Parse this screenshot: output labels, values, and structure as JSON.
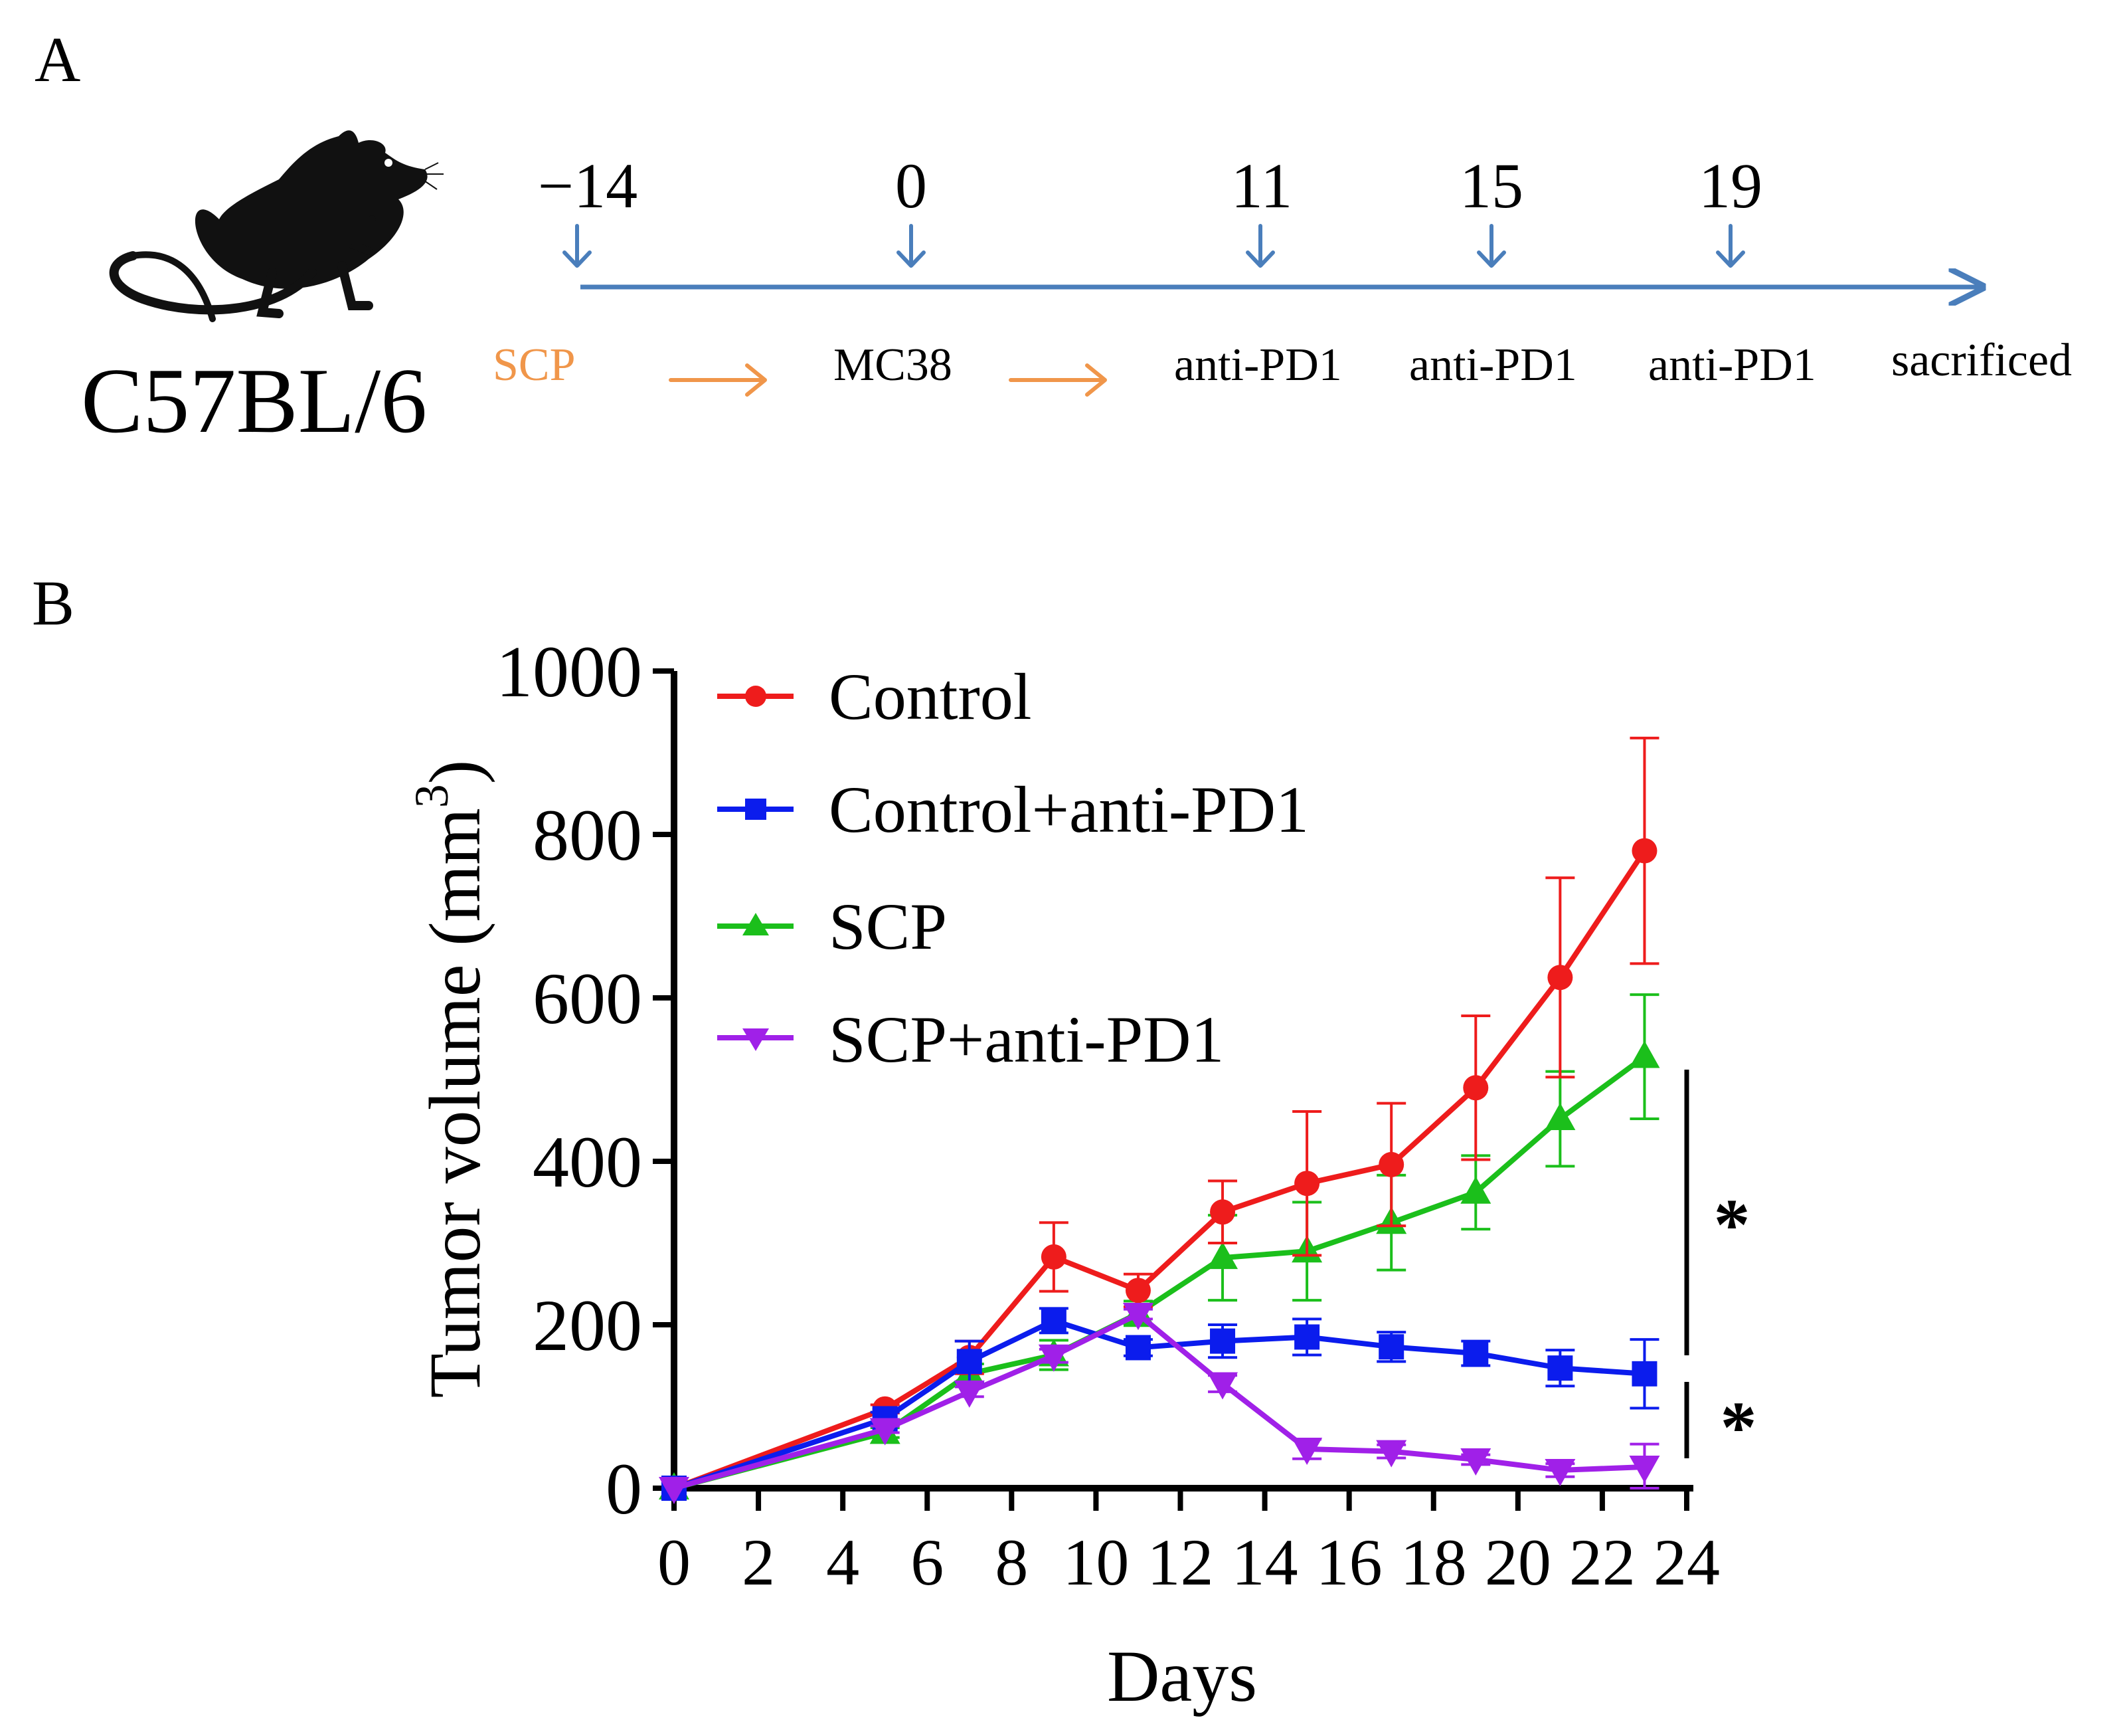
{
  "panel_a": {
    "label": "A",
    "strain": "C57BL/6",
    "mouse_icon": "mouse-silhouette-icon",
    "timeline": {
      "days": [
        "−14",
        "0",
        "11",
        "15",
        "19"
      ],
      "events": [
        "SCP",
        "MC38",
        "anti-PD1",
        "anti-PD1",
        "anti-PD1",
        "sacrificed"
      ],
      "axis_color": "#4a7ebb",
      "highlight_color": "#f0964a"
    }
  },
  "panel_b": {
    "label": "B",
    "significance": [
      "*",
      "*"
    ]
  },
  "chart_data": {
    "type": "line",
    "title": "",
    "xlabel": "Days",
    "ylabel": "Tumor volume (mm",
    "ylabel_sup": "3",
    "ylabel_close": ")",
    "xlim": [
      0,
      24
    ],
    "ylim": [
      0,
      1000
    ],
    "xticks": [
      "0",
      "2",
      "4",
      "6",
      "8",
      "10",
      "12",
      "14",
      "16",
      "18",
      "20",
      "22",
      "24"
    ],
    "yticks": [
      "0",
      "200",
      "400",
      "600",
      "800",
      "1000"
    ],
    "grid": false,
    "legend": "top-left",
    "series": [
      {
        "name": "Control",
        "color": "#ee1c1c",
        "marker": "circle",
        "x": [
          0,
          5,
          7,
          9,
          11,
          13,
          15,
          17,
          19,
          21,
          23
        ],
        "y": [
          0,
          97,
          160,
          283,
          242,
          338,
          373,
          396,
          490,
          625,
          780
        ],
        "err": [
          0,
          5,
          20,
          42,
          20,
          38,
          88,
          75,
          88,
          122,
          138
        ]
      },
      {
        "name": "Control+anti-PD1",
        "color": "#0b1ced",
        "marker": "square",
        "x": [
          0,
          5,
          7,
          9,
          11,
          13,
          15,
          17,
          19,
          21,
          23
        ],
        "y": [
          0,
          85,
          155,
          205,
          172,
          180,
          185,
          173,
          165,
          147,
          140
        ],
        "err": [
          0,
          8,
          25,
          15,
          10,
          20,
          22,
          18,
          15,
          22,
          42
        ]
      },
      {
        "name": "SCP",
        "color": "#1bbf1b",
        "marker": "triangle-up",
        "x": [
          0,
          5,
          7,
          9,
          11,
          13,
          15,
          17,
          19,
          21,
          23
        ],
        "y": [
          0,
          68,
          140,
          163,
          214,
          282,
          290,
          325,
          362,
          452,
          528
        ],
        "err": [
          0,
          6,
          12,
          18,
          15,
          52,
          60,
          58,
          45,
          58,
          76
        ]
      },
      {
        "name": "SCP+anti-PD1",
        "color": "#a020e8",
        "marker": "triangle-down",
        "x": [
          0,
          5,
          7,
          9,
          11,
          13,
          15,
          17,
          19,
          21,
          23
        ],
        "y": [
          0,
          72,
          118,
          162,
          213,
          128,
          48,
          45,
          35,
          22,
          26
        ],
        "err": [
          0,
          4,
          6,
          8,
          6,
          10,
          12,
          8,
          6,
          8,
          28
        ]
      }
    ]
  }
}
